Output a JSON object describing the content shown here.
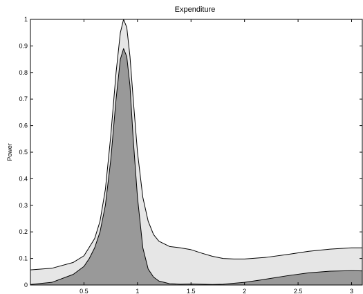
{
  "chart_data": {
    "type": "area",
    "title": "Expenditure",
    "xlabel": "",
    "ylabel": "Power",
    "xlim": [
      0,
      3.1
    ],
    "ylim": [
      0,
      1
    ],
    "x_ticks": [
      0.5,
      1,
      1.5,
      2,
      2.5,
      3
    ],
    "y_ticks": [
      0,
      0.1,
      0.2,
      0.3,
      0.4,
      0.5,
      0.6,
      0.7,
      0.8,
      0.9,
      1
    ],
    "grid": false,
    "legend": "none",
    "series": [
      {
        "fill": "#e6e6e6",
        "x": [
          0,
          0.2,
          0.4,
          0.5,
          0.6,
          0.65,
          0.7,
          0.75,
          0.8,
          0.84,
          0.87,
          0.9,
          0.93,
          0.96,
          1.0,
          1.05,
          1.1,
          1.15,
          1.2,
          1.3,
          1.4,
          1.5,
          1.6,
          1.7,
          1.8,
          1.9,
          2.0,
          2.2,
          2.4,
          2.6,
          2.8,
          3.0,
          3.1
        ],
        "y": [
          0.057,
          0.063,
          0.085,
          0.11,
          0.175,
          0.24,
          0.36,
          0.56,
          0.8,
          0.95,
          1.0,
          0.97,
          0.86,
          0.7,
          0.5,
          0.33,
          0.24,
          0.19,
          0.165,
          0.145,
          0.14,
          0.133,
          0.12,
          0.108,
          0.1,
          0.098,
          0.098,
          0.104,
          0.115,
          0.127,
          0.135,
          0.14,
          0.14
        ]
      },
      {
        "fill": "#999999",
        "x": [
          0,
          0.2,
          0.4,
          0.5,
          0.55,
          0.6,
          0.65,
          0.7,
          0.75,
          0.8,
          0.84,
          0.87,
          0.9,
          0.93,
          0.96,
          1.0,
          1.05,
          1.1,
          1.15,
          1.2,
          1.3,
          1.4,
          1.5,
          1.6,
          1.7,
          1.8,
          2.0,
          2.2,
          2.4,
          2.6,
          2.8,
          3.0,
          3.1
        ],
        "y": [
          0.002,
          0.01,
          0.04,
          0.07,
          0.1,
          0.14,
          0.2,
          0.3,
          0.47,
          0.7,
          0.85,
          0.89,
          0.86,
          0.75,
          0.55,
          0.33,
          0.14,
          0.06,
          0.03,
          0.015,
          0.005,
          0.003,
          0.004,
          0.003,
          0.002,
          0.003,
          0.01,
          0.022,
          0.035,
          0.046,
          0.052,
          0.054,
          0.053
        ]
      }
    ]
  }
}
